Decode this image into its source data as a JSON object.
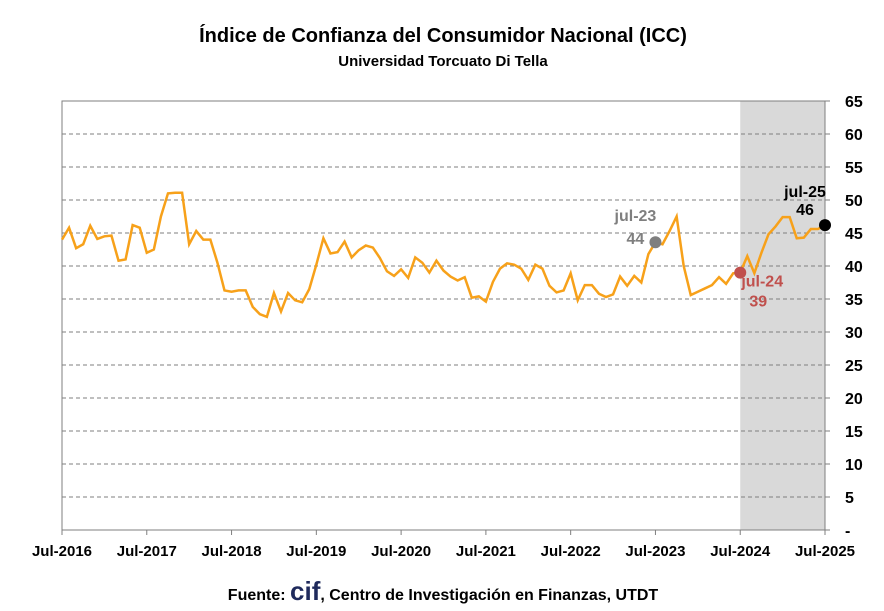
{
  "chart_data": {
    "type": "line",
    "title": "Índice de Confianza del Consumidor Nacional (ICC)",
    "subtitle": "Universidad Torcuato Di Tella",
    "source": [
      "Fuente: ",
      "cif",
      ", Centro de Investigación en Finanzas, UTDT"
    ],
    "categories": [
      "Jul-2016",
      null,
      null,
      null,
      null,
      null,
      null,
      null,
      null,
      null,
      null,
      null,
      "Jul-2017",
      null,
      null,
      null,
      null,
      null,
      null,
      null,
      null,
      null,
      null,
      null,
      "Jul-2018",
      null,
      null,
      null,
      null,
      null,
      null,
      null,
      null,
      null,
      null,
      null,
      "Jul-2019",
      null,
      null,
      null,
      null,
      null,
      null,
      null,
      null,
      null,
      null,
      null,
      "Jul-2020",
      null,
      null,
      null,
      null,
      null,
      null,
      null,
      null,
      null,
      null,
      null,
      "Jul-2021",
      null,
      null,
      null,
      null,
      null,
      null,
      null,
      null,
      null,
      null,
      null,
      "Jul-2022",
      null,
      null,
      null,
      null,
      null,
      null,
      null,
      null,
      null,
      null,
      null,
      "Jul-2023",
      null,
      null,
      null,
      null,
      null,
      null,
      null,
      null,
      null,
      null,
      null,
      "Jul-2024",
      null,
      null,
      null,
      null,
      null,
      null,
      null,
      null,
      null,
      null,
      null,
      "Jul-2025"
    ],
    "series": [
      {
        "name": "ICC",
        "color": "#f7a11a",
        "values": [
          44,
          45.8,
          42.7,
          43.3,
          46.1,
          44.1,
          44.5,
          44.6,
          40.8,
          41,
          46.2,
          45.8,
          42,
          42.5,
          47.5,
          51,
          51.1,
          51.1,
          43.3,
          45.3,
          44,
          44,
          40.5,
          36.3,
          36.1,
          36.3,
          36.3,
          33.8,
          32.7,
          32.3,
          35.9,
          33.1,
          35.9,
          34.8,
          34.5,
          36.5,
          40.2,
          44.2,
          41.9,
          42.1,
          43.7,
          41.3,
          42.4,
          43.1,
          42.8,
          41.2,
          39.2,
          38.5,
          39.5,
          38.2,
          41.3,
          40.5,
          39,
          40.8,
          39.3,
          38.4,
          37.8,
          38.3,
          35.2,
          35.4,
          34.6,
          37.6,
          39.6,
          40.4,
          40.2,
          39.6,
          37.9,
          40.2,
          39.6,
          37,
          36,
          36.3,
          38.9,
          34.8,
          37.1,
          37.1,
          35.8,
          35.3,
          35.7,
          38.4,
          37,
          38.5,
          37.5,
          41.8,
          43.6,
          43.3,
          45.3,
          47.5,
          40,
          35.6,
          36.1,
          36.6,
          37.1,
          38.3,
          37.3,
          38.9,
          39,
          41.5,
          38.9,
          42,
          44.8,
          46,
          47.4,
          47.4,
          44.2,
          44.3,
          45.6,
          45.6,
          46.2
        ]
      }
    ],
    "highlights": [
      {
        "index": 84,
        "label": "jul-23",
        "value_label": "44",
        "color": "#7f7f7f"
      },
      {
        "index": 96,
        "label": "jul-24",
        "value_label": "39",
        "color": "#c0504d"
      },
      {
        "index": 108,
        "label": "jul-25",
        "value_label": "46",
        "color": "#000000"
      }
    ],
    "shade_start": "Jul-2024",
    "shade_color": "#d9d9d9",
    "ylim": [
      0,
      65
    ],
    "yticks": [
      {
        "value": 0,
        "label": "-"
      },
      5,
      10,
      15,
      20,
      25,
      30,
      35,
      40,
      45,
      50,
      55,
      60,
      65
    ],
    "grid": true
  }
}
